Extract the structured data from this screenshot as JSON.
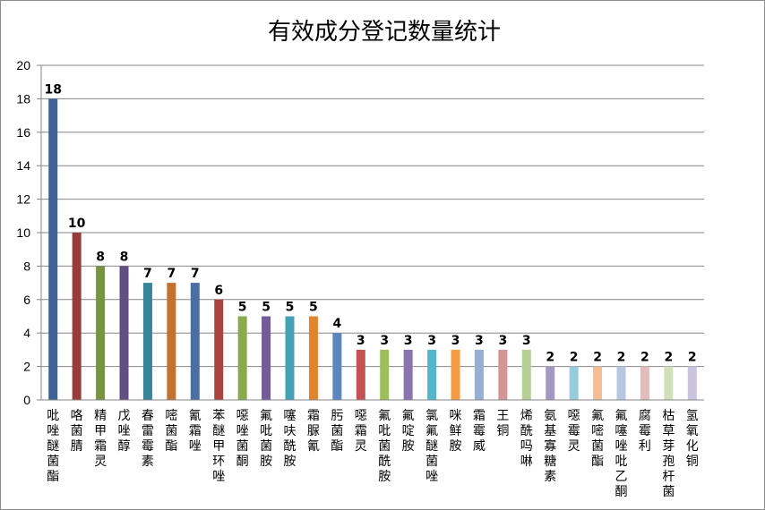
{
  "chart_data": {
    "type": "bar",
    "title": "有效成分登记数量统计",
    "xlabel": "",
    "ylabel": "",
    "ylim": [
      0,
      20
    ],
    "yticks": [
      0,
      2,
      4,
      6,
      8,
      10,
      12,
      14,
      16,
      18,
      20
    ],
    "grid": true,
    "legend": "none",
    "categories": [
      "吡唑醚菌酯",
      "咯菌腈",
      "精甲霜灵",
      "戊唑醇",
      "春雷霉素",
      "嘧菌酯",
      "氰霜唑",
      "苯醚甲环唑",
      "噁唑菌酮",
      "氟吡菌胺",
      "噻呋酰胺",
      "霜脲氰",
      "肟菌酯",
      "噁霜灵",
      "氟吡菌酰胺",
      "氟啶胺",
      "氯氟醚菌唑",
      "咪鲜胺",
      "霜霉威",
      "王铜",
      "烯酰吗啉",
      "氨基寡糖素",
      "噁霉灵",
      "氟嘧菌酯",
      "氟噻唑吡乙酮",
      "腐霉利",
      "枯草芽孢杆菌",
      "氢氧化铜"
    ],
    "values": [
      18,
      10,
      8,
      8,
      7,
      7,
      7,
      6,
      5,
      5,
      5,
      5,
      4,
      3,
      3,
      3,
      3,
      3,
      3,
      3,
      3,
      2,
      2,
      2,
      2,
      2,
      2,
      2
    ],
    "colors": [
      "#3d6294",
      "#963c39",
      "#779443",
      "#624e83",
      "#388396",
      "#c2722e",
      "#4a6fa5",
      "#a84541",
      "#8aaa4d",
      "#735c99",
      "#44a0b5",
      "#e0852f",
      "#5c86bf",
      "#c45252",
      "#9cbf5c",
      "#8a74ad",
      "#56b5cc",
      "#f59a45",
      "#96afd4",
      "#d49595",
      "#b6cf94",
      "#a597c4",
      "#96ccdb",
      "#f5bd94",
      "#b8c7e0",
      "#e3bcbc",
      "#d0e0b8",
      "#cbc2de"
    ]
  }
}
